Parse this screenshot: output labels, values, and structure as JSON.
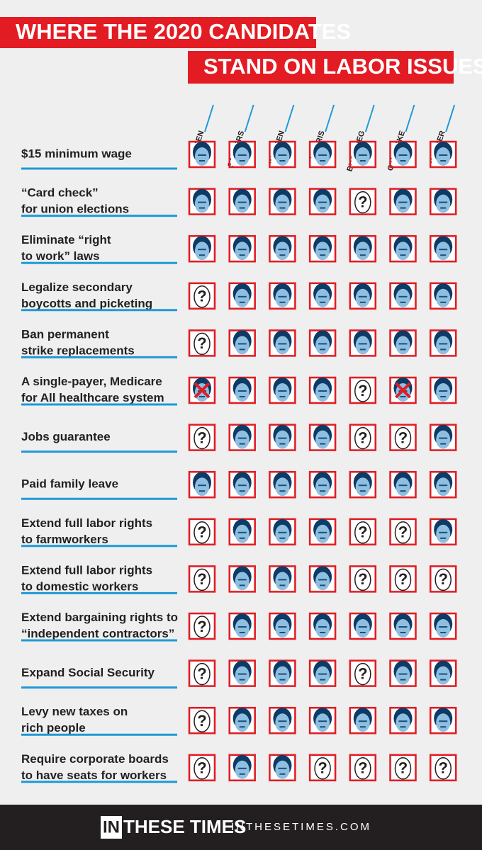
{
  "header": {
    "title_lines": [
      "WHERE THE 2020 CANDIDATES",
      "STAND ON LABOR ISSUES"
    ]
  },
  "candidates": [
    "BIDEN",
    "SANDERS",
    "WARREN",
    "HARRIS",
    "BUTTIGIEG",
    "O'ROURKE",
    "BOOKER"
  ],
  "issues": [
    {
      "label": [
        "$15 minimum wage"
      ],
      "cells": [
        "face",
        "face",
        "face",
        "face",
        "face",
        "face",
        "face"
      ]
    },
    {
      "label": [
        "“Card check”",
        "for union elections"
      ],
      "cells": [
        "face",
        "face",
        "face",
        "face",
        "?",
        "face",
        "face"
      ]
    },
    {
      "label": [
        "Eliminate “right",
        "to work” laws"
      ],
      "cells": [
        "face",
        "face",
        "face",
        "face",
        "face",
        "face",
        "face"
      ]
    },
    {
      "label": [
        "Legalize secondary",
        "boycotts and picketing"
      ],
      "cells": [
        "?",
        "face",
        "face",
        "face",
        "face",
        "face",
        "face"
      ]
    },
    {
      "label": [
        "Ban permanent",
        "strike replacements"
      ],
      "cells": [
        "?",
        "face",
        "face",
        "face",
        "face",
        "face",
        "face"
      ]
    },
    {
      "label": [
        "A single-payer, Medicare",
        "for All healthcare system"
      ],
      "cells": [
        "x",
        "face",
        "face",
        "face",
        "?",
        "x",
        "face"
      ]
    },
    {
      "label": [
        "Jobs guarantee"
      ],
      "cells": [
        "?",
        "face",
        "face",
        "face",
        "?",
        "?",
        "face"
      ]
    },
    {
      "label": [
        "Paid family leave"
      ],
      "cells": [
        "face",
        "face",
        "face",
        "face",
        "face",
        "face",
        "face"
      ]
    },
    {
      "label": [
        "Extend full labor rights",
        "to farmworkers"
      ],
      "cells": [
        "?",
        "face",
        "face",
        "face",
        "?",
        "?",
        "face"
      ]
    },
    {
      "label": [
        "Extend full labor rights",
        "to domestic workers"
      ],
      "cells": [
        "?",
        "face",
        "face",
        "face",
        "?",
        "?",
        "?"
      ]
    },
    {
      "label": [
        "Extend bargaining rights to",
        "“independent contractors”"
      ],
      "cells": [
        "?",
        "face",
        "face",
        "face",
        "face",
        "face",
        "face"
      ]
    },
    {
      "label": [
        "Expand Social Security"
      ],
      "cells": [
        "?",
        "face",
        "face",
        "face",
        "?",
        "face",
        "face"
      ]
    },
    {
      "label": [
        "Levy new taxes on",
        "rich people"
      ],
      "cells": [
        "?",
        "face",
        "face",
        "face",
        "face",
        "face",
        "face"
      ]
    },
    {
      "label": [
        "Require corporate boards",
        "to have seats for workers"
      ],
      "cells": [
        "?",
        "face",
        "face",
        "?",
        "?",
        "?",
        "?"
      ]
    }
  ],
  "footer": {
    "logo_in": "IN",
    "logo_rest": "THESE TIMES",
    "url": "INTHESETIMES.COM"
  }
}
